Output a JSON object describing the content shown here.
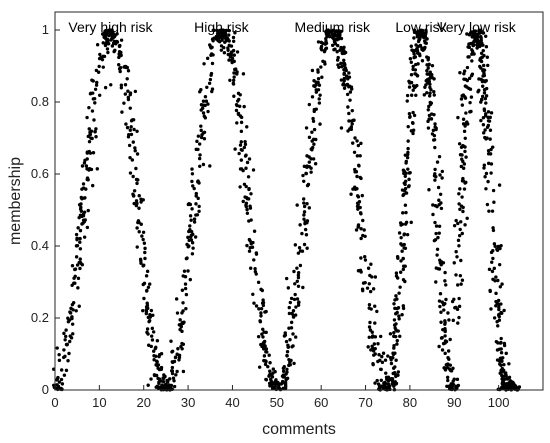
{
  "chart_data": {
    "type": "scatter",
    "xlabel": "comments",
    "ylabel": "membership",
    "xlim": [
      0,
      110
    ],
    "ylim": [
      0,
      1.05
    ],
    "xticks": [
      0,
      10,
      20,
      30,
      40,
      50,
      60,
      70,
      80,
      90,
      100
    ],
    "yticks": [
      0,
      0.2,
      0.4,
      0.6,
      0.8,
      1
    ],
    "ytick_labels": [
      "0",
      "0.2",
      "0.4",
      "0.6",
      "0.8",
      "1"
    ],
    "grid": false,
    "marker_color": "#000000",
    "series": [
      {
        "name": "Very high risk",
        "peak_x": 12.5,
        "support": [
          0,
          25
        ],
        "peak_y": 1
      },
      {
        "name": "High risk",
        "peak_x": 37.5,
        "support": [
          25,
          50
        ],
        "peak_y": 1
      },
      {
        "name": "Medium risk",
        "peak_x": 62.5,
        "support": [
          50,
          75
        ],
        "peak_y": 1
      },
      {
        "name": "Low risk",
        "peak_x": 82.5,
        "support": [
          75,
          90
        ],
        "peak_y": 1
      },
      {
        "name": "Very low risk",
        "peak_x": 95,
        "support": [
          90,
          104
        ],
        "peak_y": 1
      }
    ]
  }
}
